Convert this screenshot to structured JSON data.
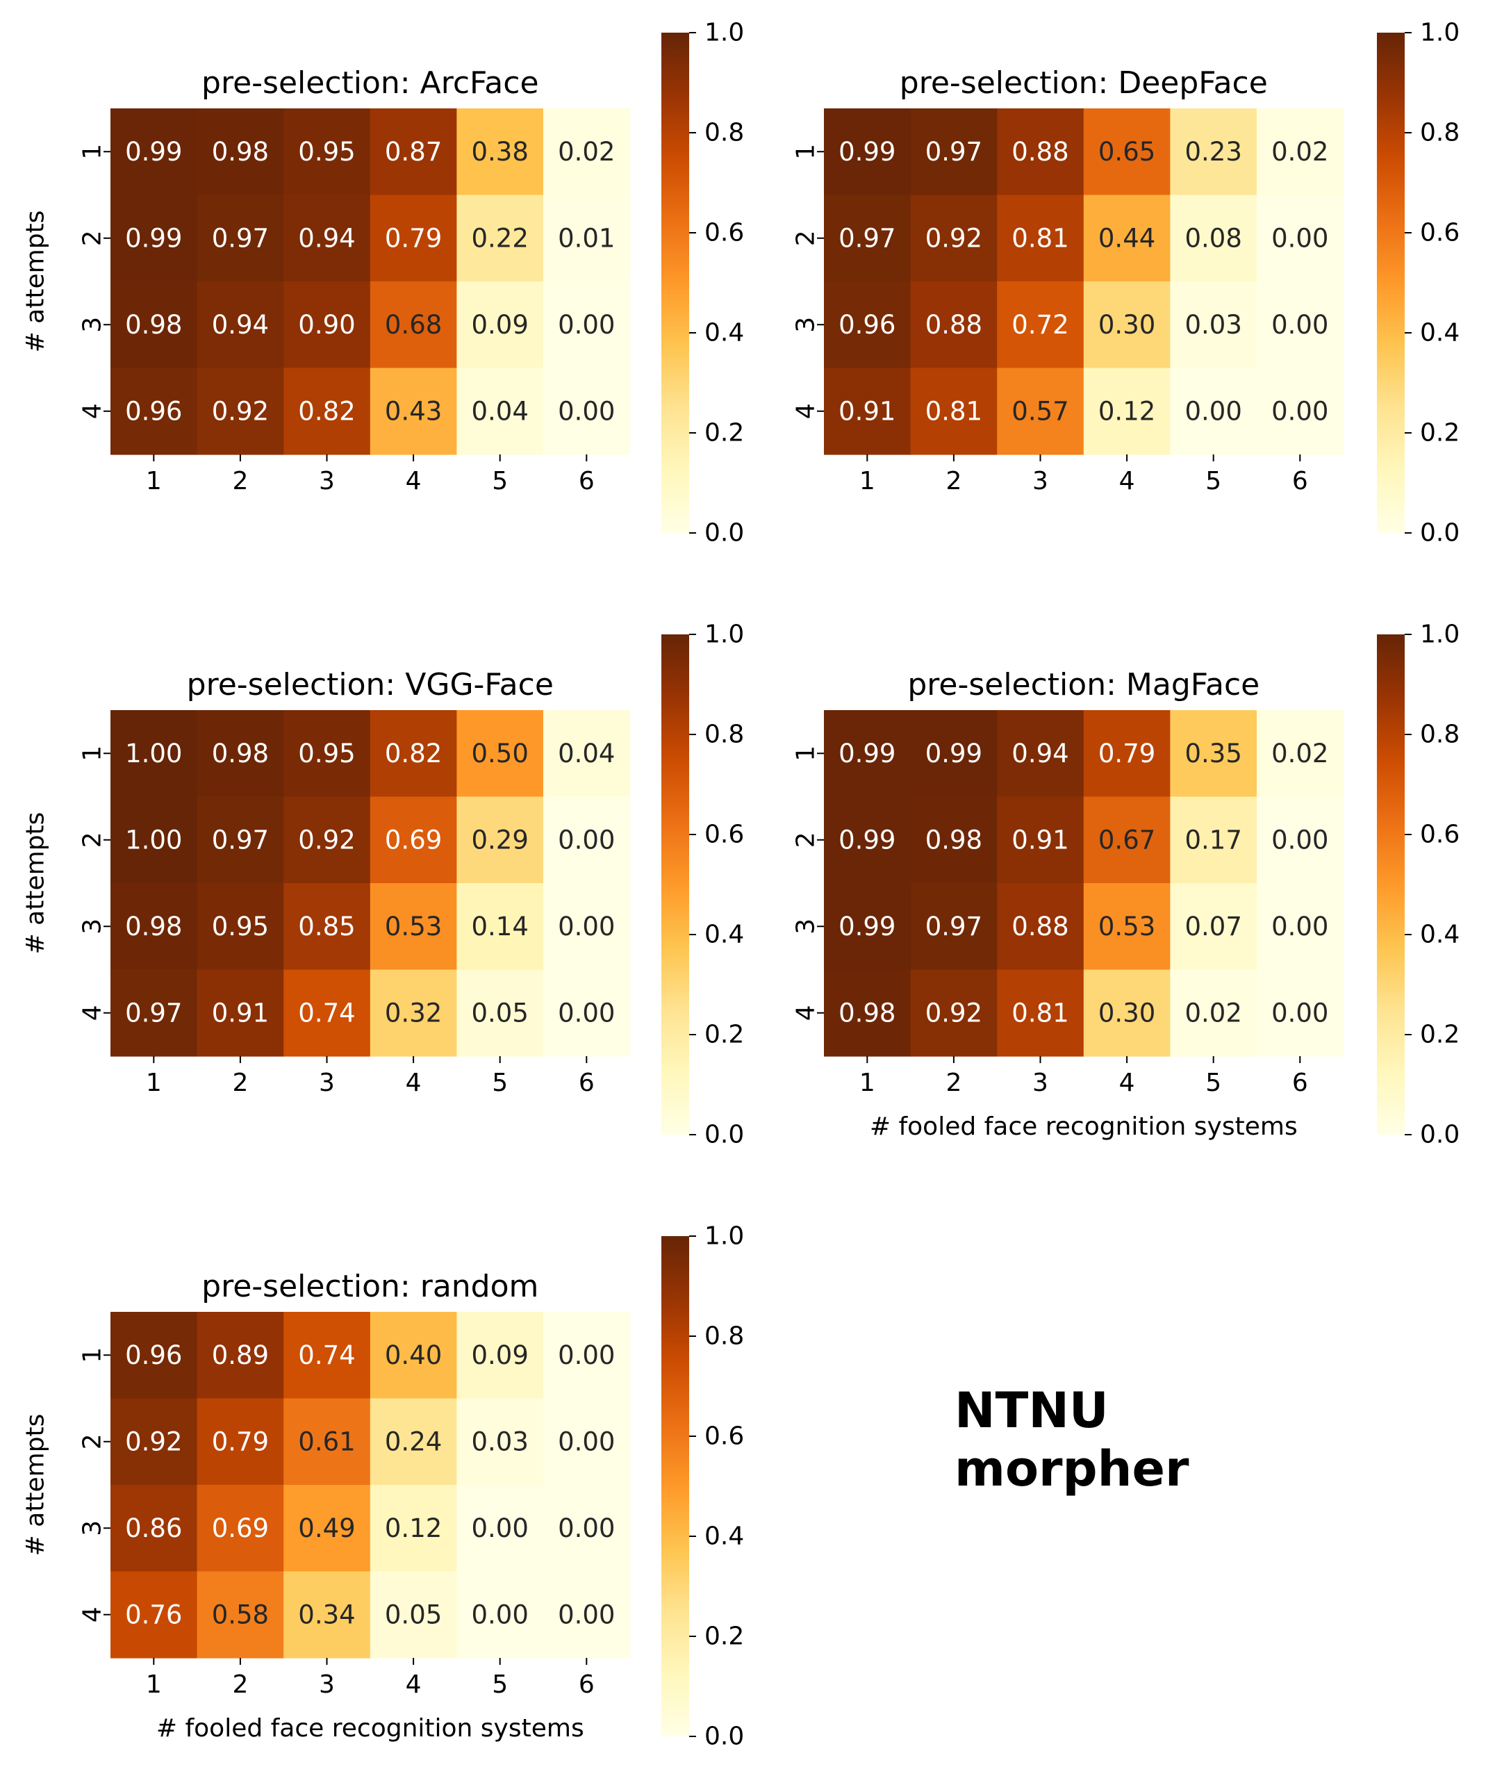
{
  "annotation": {
    "line1": "NTNU",
    "line2": "morpher"
  },
  "colormap": [
    "#ffffe5",
    "#fff7bc",
    "#fee391",
    "#fec44f",
    "#fe9929",
    "#ec7014",
    "#cc4c02",
    "#993404",
    "#662506"
  ],
  "chart_data": [
    {
      "type": "heatmap",
      "title": "pre-selection: ArcFace",
      "xlabel": "",
      "ylabel": "# attempts",
      "x_categories": [
        "1",
        "2",
        "3",
        "4",
        "5",
        "6"
      ],
      "y_categories": [
        "1",
        "2",
        "3",
        "4"
      ],
      "values": [
        [
          0.99,
          0.98,
          0.95,
          0.87,
          0.38,
          0.02
        ],
        [
          0.99,
          0.97,
          0.94,
          0.79,
          0.22,
          0.01
        ],
        [
          0.98,
          0.94,
          0.9,
          0.68,
          0.09,
          0.0
        ],
        [
          0.96,
          0.92,
          0.82,
          0.43,
          0.04,
          0.0
        ]
      ],
      "colorbar": {
        "range": [
          0,
          1
        ],
        "ticks": [
          "0.0",
          "0.2",
          "0.4",
          "0.6",
          "0.8",
          "1.0"
        ]
      }
    },
    {
      "type": "heatmap",
      "title": "pre-selection: DeepFace",
      "xlabel": "",
      "ylabel": "",
      "x_categories": [
        "1",
        "2",
        "3",
        "4",
        "5",
        "6"
      ],
      "y_categories": [
        "1",
        "2",
        "3",
        "4"
      ],
      "values": [
        [
          0.99,
          0.97,
          0.88,
          0.65,
          0.23,
          0.02
        ],
        [
          0.97,
          0.92,
          0.81,
          0.44,
          0.08,
          0.0
        ],
        [
          0.96,
          0.88,
          0.72,
          0.3,
          0.03,
          0.0
        ],
        [
          0.91,
          0.81,
          0.57,
          0.12,
          0.0,
          0.0
        ]
      ],
      "colorbar": {
        "range": [
          0,
          1
        ],
        "ticks": [
          "0.0",
          "0.2",
          "0.4",
          "0.6",
          "0.8",
          "1.0"
        ]
      }
    },
    {
      "type": "heatmap",
      "title": "pre-selection: VGG-Face",
      "xlabel": "",
      "ylabel": "# attempts",
      "x_categories": [
        "1",
        "2",
        "3",
        "4",
        "5",
        "6"
      ],
      "y_categories": [
        "1",
        "2",
        "3",
        "4"
      ],
      "values": [
        [
          1.0,
          0.98,
          0.95,
          0.82,
          0.5,
          0.04
        ],
        [
          1.0,
          0.97,
          0.92,
          0.69,
          0.29,
          0.0
        ],
        [
          0.98,
          0.95,
          0.85,
          0.53,
          0.14,
          0.0
        ],
        [
          0.97,
          0.91,
          0.74,
          0.32,
          0.05,
          0.0
        ]
      ],
      "colorbar": {
        "range": [
          0,
          1
        ],
        "ticks": [
          "0.0",
          "0.2",
          "0.4",
          "0.6",
          "0.8",
          "1.0"
        ]
      }
    },
    {
      "type": "heatmap",
      "title": "pre-selection: MagFace",
      "xlabel": "# fooled face recognition systems",
      "ylabel": "",
      "x_categories": [
        "1",
        "2",
        "3",
        "4",
        "5",
        "6"
      ],
      "y_categories": [
        "1",
        "2",
        "3",
        "4"
      ],
      "values": [
        [
          0.99,
          0.99,
          0.94,
          0.79,
          0.35,
          0.02
        ],
        [
          0.99,
          0.98,
          0.91,
          0.67,
          0.17,
          0.0
        ],
        [
          0.99,
          0.97,
          0.88,
          0.53,
          0.07,
          0.0
        ],
        [
          0.98,
          0.92,
          0.81,
          0.3,
          0.02,
          0.0
        ]
      ],
      "colorbar": {
        "range": [
          0,
          1
        ],
        "ticks": [
          "0.0",
          "0.2",
          "0.4",
          "0.6",
          "0.8",
          "1.0"
        ]
      }
    },
    {
      "type": "heatmap",
      "title": "pre-selection: random",
      "xlabel": "# fooled face recognition systems",
      "ylabel": "# attempts",
      "x_categories": [
        "1",
        "2",
        "3",
        "4",
        "5",
        "6"
      ],
      "y_categories": [
        "1",
        "2",
        "3",
        "4"
      ],
      "values": [
        [
          0.96,
          0.89,
          0.74,
          0.4,
          0.09,
          0.0
        ],
        [
          0.92,
          0.79,
          0.61,
          0.24,
          0.03,
          0.0
        ],
        [
          0.86,
          0.69,
          0.49,
          0.12,
          0.0,
          0.0
        ],
        [
          0.76,
          0.58,
          0.34,
          0.05,
          0.0,
          0.0
        ]
      ],
      "colorbar": {
        "range": [
          0,
          1
        ],
        "ticks": [
          "0.0",
          "0.2",
          "0.4",
          "0.6",
          "0.8",
          "1.0"
        ]
      }
    }
  ]
}
